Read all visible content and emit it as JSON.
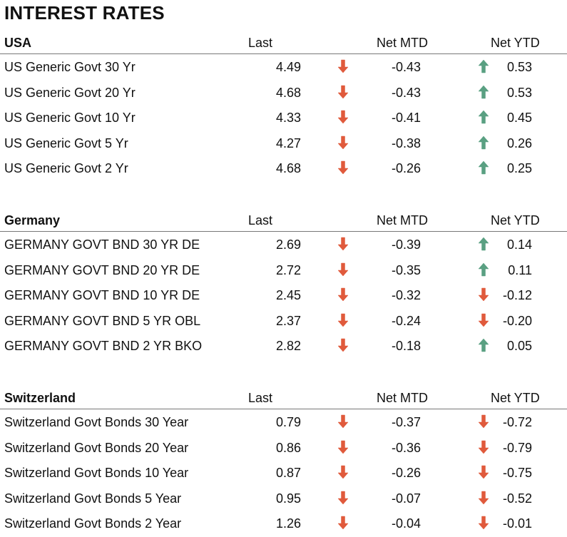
{
  "title": "INTEREST RATES",
  "columns": {
    "last": "Last",
    "mtd": "Net MTD",
    "ytd": "Net YTD"
  },
  "colors": {
    "down": "#e05a3c",
    "up": "#5aa082"
  },
  "sections": [
    {
      "name": "USA",
      "rows": [
        {
          "name": "US Generic Govt 30 Yr",
          "last": "4.49",
          "mtd": "-0.43",
          "mtd_dir": "down",
          "ytd": "0.53",
          "ytd_dir": "up"
        },
        {
          "name": "US Generic Govt 20 Yr",
          "last": "4.68",
          "mtd": "-0.43",
          "mtd_dir": "down",
          "ytd": "0.53",
          "ytd_dir": "up"
        },
        {
          "name": "US Generic Govt 10 Yr",
          "last": "4.33",
          "mtd": "-0.41",
          "mtd_dir": "down",
          "ytd": "0.45",
          "ytd_dir": "up"
        },
        {
          "name": "US Generic Govt 5 Yr",
          "last": "4.27",
          "mtd": "-0.38",
          "mtd_dir": "down",
          "ytd": "0.26",
          "ytd_dir": "up"
        },
        {
          "name": "US Generic Govt 2 Yr",
          "last": "4.68",
          "mtd": "-0.26",
          "mtd_dir": "down",
          "ytd": "0.25",
          "ytd_dir": "up"
        }
      ]
    },
    {
      "name": "Germany",
      "rows": [
        {
          "name": "GERMANY GOVT BND 30 YR DE",
          "last": "2.69",
          "mtd": "-0.39",
          "mtd_dir": "down",
          "ytd": "0.14",
          "ytd_dir": "up"
        },
        {
          "name": "GERMANY GOVT BND 20 YR DE",
          "last": "2.72",
          "mtd": "-0.35",
          "mtd_dir": "down",
          "ytd": "0.11",
          "ytd_dir": "up"
        },
        {
          "name": "GERMANY GOVT BND 10 YR DE",
          "last": "2.45",
          "mtd": "-0.32",
          "mtd_dir": "down",
          "ytd": "-0.12",
          "ytd_dir": "down"
        },
        {
          "name": "GERMANY GOVT BND 5 YR OBL",
          "last": "2.37",
          "mtd": "-0.24",
          "mtd_dir": "down",
          "ytd": "-0.20",
          "ytd_dir": "down"
        },
        {
          "name": "GERMANY GOVT BND 2 YR BKO",
          "last": "2.82",
          "mtd": "-0.18",
          "mtd_dir": "down",
          "ytd": "0.05",
          "ytd_dir": "up"
        }
      ]
    },
    {
      "name": "Switzerland",
      "rows": [
        {
          "name": "Switzerland Govt Bonds 30 Year",
          "last": "0.79",
          "mtd": "-0.37",
          "mtd_dir": "down",
          "ytd": "-0.72",
          "ytd_dir": "down"
        },
        {
          "name": "Switzerland Govt Bonds 20 Year",
          "last": "0.86",
          "mtd": "-0.36",
          "mtd_dir": "down",
          "ytd": "-0.79",
          "ytd_dir": "down"
        },
        {
          "name": "Switzerland Govt Bonds 10 Year",
          "last": "0.87",
          "mtd": "-0.26",
          "mtd_dir": "down",
          "ytd": "-0.75",
          "ytd_dir": "down"
        },
        {
          "name": "Switzerland Govt Bonds 5 Year",
          "last": "0.95",
          "mtd": "-0.07",
          "mtd_dir": "down",
          "ytd": "-0.52",
          "ytd_dir": "down"
        },
        {
          "name": "Switzerland Govt Bonds 2 Year",
          "last": "1.26",
          "mtd": "-0.04",
          "mtd_dir": "down",
          "ytd": "-0.01",
          "ytd_dir": "down"
        }
      ]
    }
  ]
}
